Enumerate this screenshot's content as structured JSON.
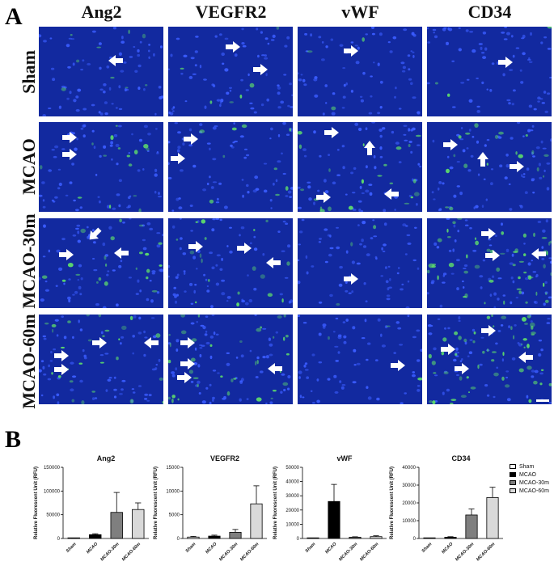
{
  "panel_a_label": "A",
  "panel_b_label": "B",
  "columns": [
    "Ang2",
    "VEGFR2",
    "vWF",
    "CD34"
  ],
  "rows": [
    "Sham",
    "MCAO",
    "MCAO-30m",
    "MCAO-60m"
  ],
  "colors": {
    "tissue_dark": "#0b1a8a",
    "tissue_mid": "#1a3cb8",
    "nuclei": "#3a5cff",
    "green_signal": "#5fe06a",
    "arrow": "#ffffff",
    "bar_sham": "#ffffff",
    "bar_mcao": "#000000",
    "bar_mcao30": "#7f7f7f",
    "bar_mcao60": "#d9d9d9"
  },
  "legend": [
    "Sham",
    "MCAO",
    "MCAO-30m",
    "MCAO-60m"
  ],
  "chart_data": [
    {
      "type": "bar",
      "title": "Ang2",
      "ylabel": "Relative Fluorescent Unit (RFU)",
      "categories": [
        "Sham",
        "MCAO",
        "MCAO-30m",
        "MCAO-60m"
      ],
      "values": [
        0,
        8000,
        55000,
        61000
      ],
      "errors": [
        0,
        2000,
        42000,
        14000
      ],
      "ylim": [
        0,
        150000
      ],
      "yticks": [
        "0",
        "50000",
        "100000",
        "150000"
      ],
      "ytick_values": [
        0,
        50000,
        100000,
        150000
      ]
    },
    {
      "type": "bar",
      "title": "VEGFR2",
      "ylabel": "Relative Fluorescent Unit (RFU)",
      "categories": [
        "Sham",
        "MCAO",
        "MCAO-30m",
        "MCAO-60m"
      ],
      "values": [
        300,
        500,
        1300,
        7300
      ],
      "errors": [
        150,
        200,
        600,
        3800
      ],
      "ylim": [
        0,
        15000
      ],
      "yticks": [
        "0",
        "5000",
        "10000",
        "15000"
      ],
      "ytick_values": [
        0,
        5000,
        10000,
        15000
      ]
    },
    {
      "type": "bar",
      "title": "vWF",
      "ylabel": "Relative Fluorescent Unit (RFU)",
      "categories": [
        "Sham",
        "MCAO",
        "MCAO-30m",
        "MCAO-60m"
      ],
      "values": [
        200,
        26000,
        900,
        1300
      ],
      "errors": [
        100,
        12000,
        300,
        600
      ],
      "ylim": [
        0,
        50000
      ],
      "yticks": [
        "0",
        "10000",
        "20000",
        "30000",
        "40000",
        "50000"
      ],
      "ytick_values": [
        0,
        10000,
        20000,
        30000,
        40000,
        50000
      ]
    },
    {
      "type": "bar",
      "title": "CD34",
      "ylabel": "Relative Fluorescent Unit (RFU)",
      "categories": [
        "Sham",
        "MCAO",
        "MCAO-30m",
        "MCAO-60m"
      ],
      "values": [
        150,
        700,
        13200,
        23000
      ],
      "errors": [
        100,
        300,
        3400,
        5800
      ],
      "ylim": [
        0,
        40000
      ],
      "yticks": [
        "0",
        "10000",
        "20000",
        "30000",
        "40000"
      ],
      "ytick_values": [
        0,
        10000,
        20000,
        30000,
        40000
      ]
    }
  ]
}
